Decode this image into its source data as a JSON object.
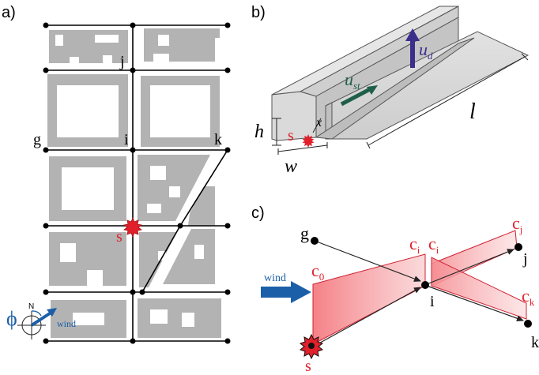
{
  "panels": {
    "a": {
      "label": "a)",
      "nodes": {
        "j": "j",
        "g": "g",
        "i": "i",
        "k": "k",
        "s": "s"
      },
      "compass": {
        "phi": "ϕ",
        "north": "N",
        "wind": "wind"
      },
      "colors": {
        "building": "#b3b3b3",
        "street": "#000000",
        "source": "#e0202a",
        "wind": "#1b5fa8"
      }
    },
    "b": {
      "label": "b)",
      "h": "h",
      "w": "w",
      "l": "l",
      "x": "x",
      "s": "s",
      "u_st_main": "u",
      "u_st_sub": "st",
      "u_d_main": "u",
      "u_d_sub": "d",
      "colors": {
        "face": "#d4d4d4",
        "top": "#c8c8c8",
        "arrow_st": "#1f5f4a",
        "arrow_d": "#3c2f8c"
      }
    },
    "c": {
      "label": "c)",
      "g": "g",
      "i": "i",
      "j": "j",
      "k": "k",
      "s": "s",
      "wind": "wind",
      "c0_main": "c",
      "c0_sub": "0",
      "ci1_main": "c",
      "ci1_sub": "i",
      "ci2_main": "c",
      "ci2_sub": "i",
      "cj_main": "c",
      "cj_sub": "j",
      "ck_main": "c",
      "ck_sub": "k",
      "colors": {
        "fill": "#f6a0a4",
        "edge": "#d02030",
        "wind": "#1b5fa8"
      }
    }
  }
}
